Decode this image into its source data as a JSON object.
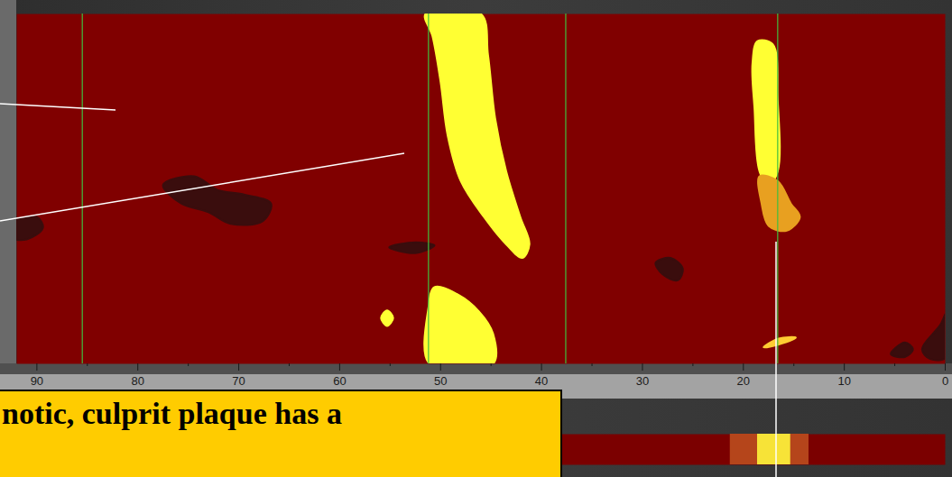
{
  "chart_data": {
    "type": "chemogram",
    "color": "#800000",
    "xlim": [
      92,
      0
    ],
    "xticks": [
      90,
      80,
      70,
      60,
      50,
      40,
      30,
      20,
      10,
      0
    ],
    "minor_xticks": [
      85,
      75,
      65,
      55,
      45,
      35,
      25,
      15,
      5
    ],
    "ylim": [
      0,
      360
    ],
    "tick_labels": "x",
    "markers": {
      "x": [
        85.5,
        51.2,
        37.6,
        16.6
      ],
      "color": "#3fbf3f"
    },
    "areas": [
      {
        "color": "#ffff33",
        "points": [
          [
            51.5,
            0
          ],
          [
            46.0,
            0
          ],
          [
            45.3,
            42
          ],
          [
            44.6,
            107
          ],
          [
            43.5,
            162
          ],
          [
            42.1,
            209
          ],
          [
            41.2,
            237
          ],
          [
            41.9,
            251
          ],
          [
            43.5,
            237
          ],
          [
            45.7,
            209
          ],
          [
            48.0,
            172
          ],
          [
            49.3,
            125
          ],
          [
            50.0,
            70
          ],
          [
            50.8,
            23
          ]
        ]
      },
      {
        "color": "#ffff33",
        "points": [
          [
            51.1,
            360
          ],
          [
            44.8,
            360
          ],
          [
            44.8,
            329
          ],
          [
            46.2,
            306
          ],
          [
            48.4,
            288
          ],
          [
            50.6,
            281
          ],
          [
            51.2,
            302
          ]
        ]
      },
      {
        "color": "#ffff33",
        "points": [
          [
            55.9,
            313
          ],
          [
            55.3,
            305
          ],
          [
            54.7,
            313
          ],
          [
            55.3,
            321
          ]
        ]
      },
      {
        "color": "#ffff33",
        "points": [
          [
            18.6,
            28
          ],
          [
            17.1,
            31
          ],
          [
            16.6,
            88
          ],
          [
            16.6,
            162
          ],
          [
            17.5,
            176
          ],
          [
            18.4,
            162
          ],
          [
            18.9,
            97
          ],
          [
            19.1,
            51
          ]
        ]
      },
      {
        "color": "#e8a020",
        "points": [
          [
            18.4,
            167
          ],
          [
            16.6,
            172
          ],
          [
            15.3,
            195
          ],
          [
            14.4,
            209
          ],
          [
            15.7,
            223
          ],
          [
            17.5,
            218
          ],
          [
            18.2,
            195
          ]
        ]
      },
      {
        "color": "#ffcc33",
        "points": [
          [
            18.0,
            343
          ],
          [
            16.5,
            334
          ],
          [
            14.8,
            333
          ],
          [
            16.5,
            340
          ]
        ]
      },
      {
        "color": "#3a0d0d",
        "points": [
          [
            92.5,
            215
          ],
          [
            90.0,
            209
          ],
          [
            89.4,
            220
          ],
          [
            91.0,
            232
          ],
          [
            92.5,
            230
          ]
        ]
      },
      {
        "color": "#3a0d0d",
        "points": [
          [
            77.5,
            176
          ],
          [
            74.4,
            167
          ],
          [
            72.1,
            181
          ],
          [
            69.4,
            186
          ],
          [
            66.8,
            195
          ],
          [
            67.6,
            213
          ],
          [
            70.8,
            216
          ],
          [
            73.0,
            204
          ],
          [
            75.7,
            195
          ]
        ]
      },
      {
        "color": "#3a0d0d",
        "points": [
          [
            55.1,
            240
          ],
          [
            52.5,
            235
          ],
          [
            50.6,
            238
          ],
          [
            52.5,
            246
          ]
        ]
      },
      {
        "color": "#3a0d0d",
        "points": [
          [
            28.7,
            256
          ],
          [
            27.2,
            251
          ],
          [
            26.0,
            262
          ],
          [
            26.5,
            274
          ],
          [
            28.0,
            268
          ]
        ]
      },
      {
        "color": "#3a0d0d",
        "points": [
          [
            2.3,
            345
          ],
          [
            0.5,
            320
          ],
          [
            -0.2,
            306
          ],
          [
            -0.2,
            353
          ],
          [
            1.5,
            355
          ]
        ]
      },
      {
        "color": "#3a0d0d",
        "points": [
          [
            5.4,
            350
          ],
          [
            4.0,
            338
          ],
          [
            3.2,
            345
          ],
          [
            4.0,
            353
          ]
        ]
      }
    ],
    "block_chemogram": {
      "color": "#7b0000",
      "blocks": [
        {
          "x": [
            21.3,
            18.6
          ],
          "color": "#b5451b"
        },
        {
          "x": [
            18.6,
            15.3
          ],
          "color": "#f7e337"
        },
        {
          "x": [
            15.3,
            13.5
          ],
          "color": "#b5451b"
        }
      ]
    },
    "annotation": "notic, culprit plaque has a"
  }
}
